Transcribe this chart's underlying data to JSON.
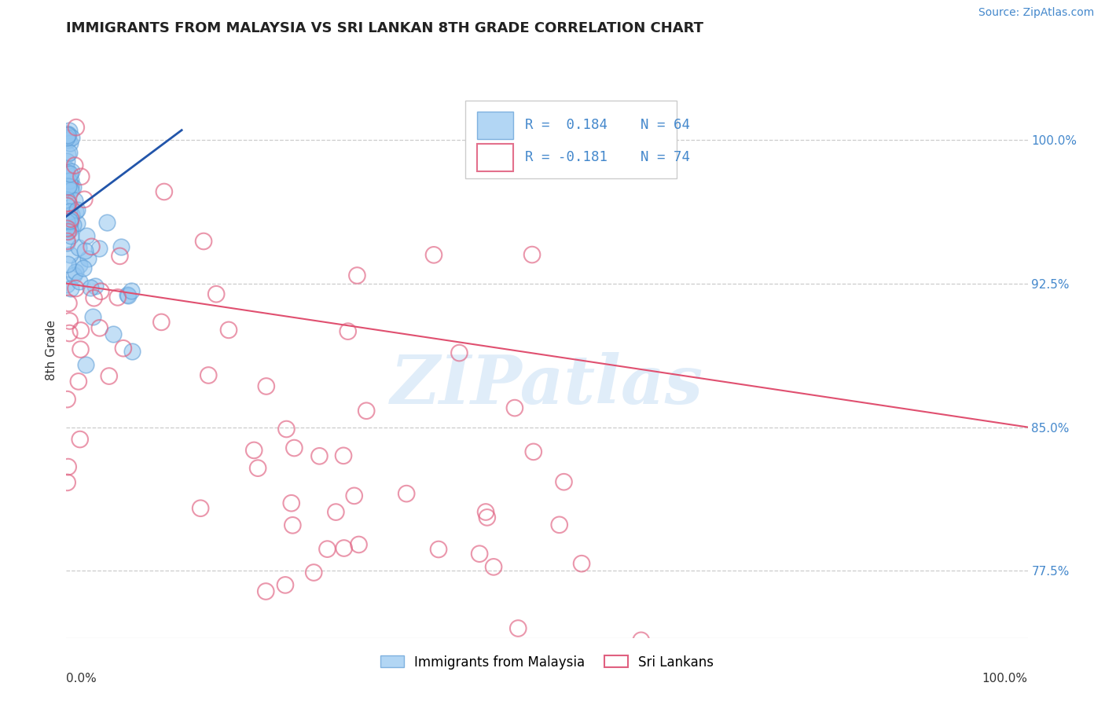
{
  "title": "IMMIGRANTS FROM MALAYSIA VS SRI LANKAN 8TH GRADE CORRELATION CHART",
  "source": "Source: ZipAtlas.com",
  "ylabel": "8th Grade",
  "blue_label": "Immigrants from Malaysia",
  "pink_label": "Sri Lankans",
  "blue_R": 0.184,
  "blue_N": 64,
  "pink_R": -0.181,
  "pink_N": 74,
  "blue_color": "#92c5f0",
  "blue_edge_color": "#5b9bd5",
  "pink_color": "#f4a0b0",
  "pink_edge_color": "#e06080",
  "blue_line_color": "#2255aa",
  "pink_line_color": "#e05070",
  "ytick_labels": [
    "100.0%",
    "92.5%",
    "85.0%",
    "77.5%"
  ],
  "ytick_values": [
    1.0,
    0.925,
    0.85,
    0.775
  ],
  "xlim": [
    0.0,
    1.0
  ],
  "ylim": [
    0.74,
    1.04
  ],
  "blue_line_x": [
    0.0,
    0.12
  ],
  "blue_line_y": [
    0.96,
    1.005
  ],
  "pink_line_x": [
    0.0,
    1.0
  ],
  "pink_line_y": [
    0.925,
    0.85
  ],
  "watermark_text": "ZIPatlas",
  "watermark_color": "#c8dff5",
  "background_color": "#ffffff",
  "grid_color": "#cccccc",
  "title_color": "#222222",
  "source_color": "#4488cc",
  "ytick_color": "#4488cc",
  "xtick_left": "0.0%",
  "xtick_right": "100.0%"
}
